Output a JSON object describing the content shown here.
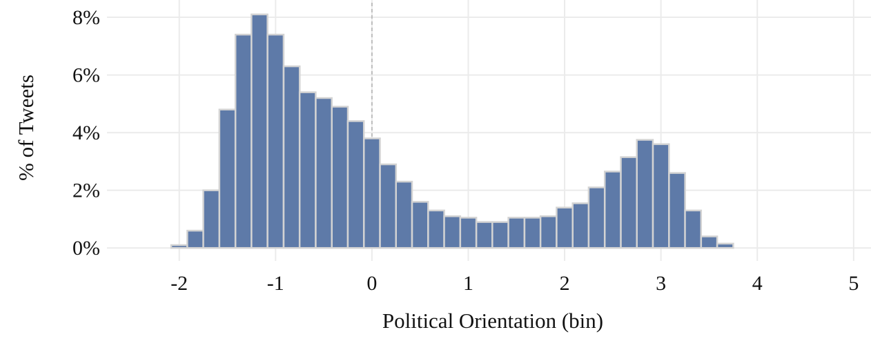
{
  "chart_data": {
    "type": "bar",
    "title": "",
    "xlabel": "Political Orientation (bin)",
    "ylabel": "% of Tweets",
    "xlim": [
      -2.75,
      5.18
    ],
    "ylim": [
      -0.45,
      8.6
    ],
    "grid": true,
    "x_ticks": [
      {
        "value": -2,
        "label": "-2"
      },
      {
        "value": -1,
        "label": "-1"
      },
      {
        "value": 0,
        "label": "0"
      },
      {
        "value": 1,
        "label": "1"
      },
      {
        "value": 2,
        "label": "2"
      },
      {
        "value": 3,
        "label": "3"
      },
      {
        "value": 4,
        "label": "4"
      },
      {
        "value": 5,
        "label": "5"
      }
    ],
    "y_ticks": [
      {
        "value": 0,
        "label": "0%"
      },
      {
        "value": 2,
        "label": "2%"
      },
      {
        "value": 4,
        "label": "4%"
      },
      {
        "value": 6,
        "label": "6%"
      },
      {
        "value": 8,
        "label": "8%"
      }
    ],
    "reference_line_x": 0,
    "bin_width": 0.1667,
    "bin_centers": [
      -2.0,
      -1.833,
      -1.667,
      -1.5,
      -1.333,
      -1.167,
      -1.0,
      -0.833,
      -0.667,
      -0.5,
      -0.333,
      -0.167,
      0.0,
      0.167,
      0.333,
      0.5,
      0.667,
      0.833,
      1.0,
      1.167,
      1.333,
      1.5,
      1.667,
      1.833,
      2.0,
      2.167,
      2.333,
      2.5,
      2.667,
      2.833,
      3.0,
      3.167,
      3.333,
      3.5,
      3.667
    ],
    "values": [
      0.1,
      0.6,
      2.0,
      4.8,
      7.4,
      8.1,
      7.4,
      6.3,
      5.4,
      5.2,
      4.9,
      4.4,
      3.8,
      2.9,
      2.3,
      1.6,
      1.3,
      1.1,
      1.05,
      0.9,
      0.9,
      1.05,
      1.05,
      1.1,
      1.4,
      1.55,
      2.1,
      2.65,
      3.15,
      3.75,
      3.6,
      2.6,
      1.3,
      0.4,
      0.15
    ],
    "colors": {
      "bar_fill": "#5e7aa8",
      "bar_stroke": "#d3d3d3",
      "grid": "#ebebeb",
      "reference_line": "#bdbdbd"
    }
  }
}
